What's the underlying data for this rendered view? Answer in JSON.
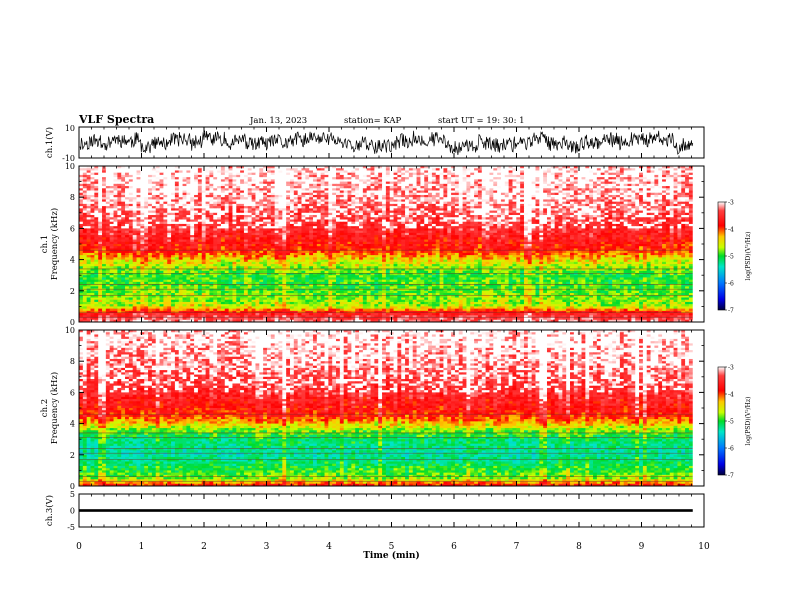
{
  "header": {
    "title": "VLF Spectra",
    "date": "Jan. 13, 2023",
    "station": "station= KAP",
    "start": "start  UT =   19: 30: 1"
  },
  "colorbar": {
    "label": "log(PSD)(V²/Hz)",
    "ticks": [
      "-3",
      "-4",
      "-5",
      "-6",
      "-7"
    ],
    "colors": [
      "#ff0000",
      "#ffff00",
      "#00ff00",
      "#00aaff",
      "#0000ff",
      "#000044"
    ]
  },
  "chart_data": [
    {
      "type": "line",
      "name": "ch1-waveform",
      "ylabel": "ch.1(V)",
      "ylim": [
        -10,
        10
      ],
      "yticks": [
        "10",
        "-10"
      ],
      "xlim": [
        0,
        10
      ],
      "x_end": 9.82,
      "description_values": "noise waveform approx ±7 V, data ends near 9.8 min"
    },
    {
      "type": "heatmap",
      "name": "ch1-spectrogram",
      "ylabel": "ch.1 Frequency (kHz)",
      "ylim": [
        0,
        10
      ],
      "yticks": [
        "0",
        "2",
        "4",
        "6",
        "8",
        "10"
      ],
      "xlim": [
        0,
        10
      ],
      "x_end": 9.82,
      "levels_by_freq_khz": [
        {
          "f": 0.0,
          "v": -3.2
        },
        {
          "f": 0.5,
          "v": -3.6
        },
        {
          "f": 1.0,
          "v": -4.6
        },
        {
          "f": 2.0,
          "v": -4.8
        },
        {
          "f": 3.0,
          "v": -4.9
        },
        {
          "f": 4.0,
          "v": -4.4
        },
        {
          "f": 4.6,
          "v": -3.9
        },
        {
          "f": 6.0,
          "v": -3.5
        },
        {
          "f": 8.0,
          "v": -3.2
        },
        {
          "f": 10.0,
          "v": -3.0
        }
      ]
    },
    {
      "type": "heatmap",
      "name": "ch2-spectrogram",
      "ylabel": "ch.2 Frequency (kHz)",
      "ylim": [
        0,
        10
      ],
      "yticks": [
        "0",
        "2",
        "4",
        "6",
        "8",
        "10"
      ],
      "xlim": [
        0,
        10
      ],
      "x_end": 9.82,
      "levels_by_freq_khz": [
        {
          "f": 0.0,
          "v": -3.8
        },
        {
          "f": 0.5,
          "v": -4.7
        },
        {
          "f": 1.0,
          "v": -4.9
        },
        {
          "f": 2.0,
          "v": -5.3
        },
        {
          "f": 3.0,
          "v": -5.1
        },
        {
          "f": 3.6,
          "v": -4.7
        },
        {
          "f": 4.5,
          "v": -3.9
        },
        {
          "f": 6.0,
          "v": -3.5
        },
        {
          "f": 8.0,
          "v": -3.2
        },
        {
          "f": 10.0,
          "v": -3.0
        }
      ]
    },
    {
      "type": "line",
      "name": "ch3-signal",
      "ylabel": "ch.3(V)",
      "ylim": [
        -5,
        5
      ],
      "yticks": [
        "5",
        "0",
        "-5"
      ],
      "xlim": [
        0,
        10
      ],
      "x_end": 9.82,
      "band": [
        -0.4,
        0.4
      ],
      "x": [
        0,
        1,
        2,
        3,
        4,
        5,
        6,
        7,
        8,
        9,
        10
      ],
      "xticks": [
        "0",
        "1",
        "2",
        "3",
        "4",
        "5",
        "6",
        "7",
        "8",
        "9",
        "10"
      ],
      "xlabel": "Time (min)"
    }
  ]
}
